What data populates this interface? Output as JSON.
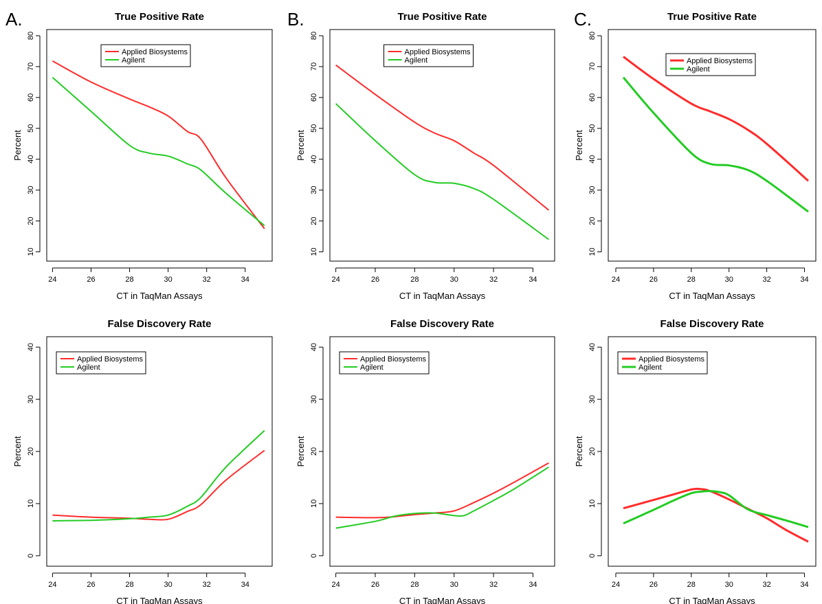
{
  "panel_letters": [
    "A.",
    "B.",
    "C."
  ],
  "colors": {
    "applied": "#ff2b2b",
    "agilent": "#22cc22"
  },
  "chart_data": [
    {
      "id": "A-top",
      "type": "line",
      "title": "True Positive Rate",
      "xlabel": "CT in TaqMan Assays",
      "ylabel": "Percent",
      "xlim": [
        23.7,
        35.4
      ],
      "ylim": [
        7,
        82
      ],
      "xticks": [
        "24",
        "26",
        "28",
        "30",
        "32",
        "34"
      ],
      "yticks": [
        "10",
        "20",
        "30",
        "40",
        "50",
        "60",
        "70",
        "80"
      ],
      "legend": "top-center",
      "series": [
        {
          "name": "Applied Biosystems",
          "color": "#ff2b2b",
          "x": [
            24,
            26,
            28,
            29,
            30,
            31,
            31.7,
            33,
            35
          ],
          "y": [
            71.8,
            65,
            59.5,
            57,
            54,
            49,
            46.5,
            34,
            17.5
          ]
        },
        {
          "name": "Agilent",
          "color": "#22cc22",
          "x": [
            24,
            26,
            28,
            29,
            30,
            31,
            31.7,
            33,
            35
          ],
          "y": [
            66.5,
            55.5,
            44.5,
            42,
            41,
            38.5,
            36.5,
            29,
            18.5
          ]
        }
      ]
    },
    {
      "id": "B-top",
      "type": "line",
      "title": "True Positive Rate",
      "xlabel": "CT in TaqMan Assays",
      "ylabel": "Percent",
      "xlim": [
        23.7,
        35.1
      ],
      "ylim": [
        7,
        82
      ],
      "xticks": [
        "24",
        "26",
        "28",
        "30",
        "32",
        "34"
      ],
      "yticks": [
        "10",
        "20",
        "30",
        "40",
        "50",
        "60",
        "70",
        "80"
      ],
      "legend": "top-center",
      "series": [
        {
          "name": "Applied Biosystems",
          "color": "#ff2b2b",
          "x": [
            24,
            26,
            28,
            29,
            30,
            31,
            32,
            34.8
          ],
          "y": [
            70.5,
            61,
            52,
            48.5,
            46,
            42,
            38,
            23.5
          ]
        },
        {
          "name": "Agilent",
          "color": "#22cc22",
          "x": [
            24,
            26,
            28,
            29,
            30,
            31,
            32,
            34.8
          ],
          "y": [
            58,
            46,
            35,
            32.5,
            32.2,
            30.5,
            27,
            14
          ]
        }
      ]
    },
    {
      "id": "C-top",
      "type": "line",
      "title": "True Positive Rate",
      "xlabel": "CT in TaqMan Assays",
      "ylabel": "Percent",
      "xlim": [
        23.6,
        34.6
      ],
      "ylim": [
        7,
        82
      ],
      "xticks": [
        "24",
        "26",
        "28",
        "30",
        "32",
        "34"
      ],
      "yticks": [
        "10",
        "20",
        "30",
        "40",
        "50",
        "60",
        "70",
        "80"
      ],
      "legend": "top-center",
      "series": [
        {
          "name": "Applied Biosystems",
          "color": "#ff2b2b",
          "x": [
            24.4,
            26,
            28,
            29,
            30,
            31,
            32,
            34.2
          ],
          "y": [
            73.2,
            66,
            58,
            55.5,
            53,
            49.5,
            45,
            33
          ]
        },
        {
          "name": "Agilent",
          "color": "#22cc22",
          "x": [
            24.4,
            26,
            28,
            29,
            30,
            31,
            32,
            34.2
          ],
          "y": [
            66.5,
            55,
            42,
            38.5,
            38,
            36.5,
            33,
            23
          ]
        }
      ]
    },
    {
      "id": "A-bottom",
      "type": "line",
      "title": "False Discovery Rate",
      "xlabel": "CT in TaqMan Assays",
      "ylabel": "Percent",
      "xlim": [
        23.7,
        35.4
      ],
      "ylim": [
        -2,
        42
      ],
      "xticks": [
        "24",
        "26",
        "28",
        "30",
        "32",
        "34"
      ],
      "yticks": [
        "0",
        "10",
        "20",
        "30",
        "40"
      ],
      "legend": "top-left",
      "series": [
        {
          "name": "Applied Biosystems",
          "color": "#ff2b2b",
          "x": [
            24,
            26,
            28,
            29,
            30,
            31,
            31.7,
            33,
            35
          ],
          "y": [
            7.8,
            7.4,
            7.2,
            7,
            7,
            8.5,
            9.8,
            14.5,
            20.2
          ]
        },
        {
          "name": "Agilent",
          "color": "#22cc22",
          "x": [
            24,
            26,
            28,
            29,
            30,
            31,
            31.7,
            33,
            35
          ],
          "y": [
            6.7,
            6.8,
            7.1,
            7.4,
            7.8,
            9.5,
            11.2,
            17,
            24
          ]
        }
      ]
    },
    {
      "id": "B-bottom",
      "type": "line",
      "title": "False Discovery Rate",
      "xlabel": "CT in TaqMan Assays",
      "ylabel": "Percent",
      "xlim": [
        23.7,
        35.1
      ],
      "ylim": [
        -2,
        42
      ],
      "xticks": [
        "24",
        "26",
        "28",
        "30",
        "32",
        "34"
      ],
      "yticks": [
        "0",
        "10",
        "20",
        "30",
        "40"
      ],
      "legend": "top-left",
      "series": [
        {
          "name": "Applied Biosystems",
          "color": "#ff2b2b",
          "x": [
            24,
            26,
            27,
            28,
            29,
            30,
            31,
            32,
            33,
            34.8
          ],
          "y": [
            7.4,
            7.3,
            7.5,
            7.9,
            8.2,
            8.6,
            10.2,
            12,
            14,
            17.8
          ]
        },
        {
          "name": "Agilent",
          "color": "#22cc22",
          "x": [
            24,
            26,
            27,
            28,
            29,
            30,
            30.5,
            31,
            32,
            33,
            34.8
          ],
          "y": [
            5.3,
            6.6,
            7.6,
            8.1,
            8.2,
            7.7,
            7.7,
            8.6,
            10.6,
            12.7,
            17
          ]
        }
      ]
    },
    {
      "id": "C-bottom",
      "type": "line",
      "title": "False Discovery Rate",
      "xlabel": "CT in TaqMan Assays",
      "ylabel": "Percent",
      "xlim": [
        23.6,
        34.6
      ],
      "ylim": [
        -2,
        42
      ],
      "xticks": [
        "24",
        "26",
        "28",
        "30",
        "32",
        "34"
      ],
      "yticks": [
        "0",
        "10",
        "20",
        "30",
        "40"
      ],
      "legend": "top-left",
      "series": [
        {
          "name": "Applied Biosystems",
          "color": "#ff2b2b",
          "x": [
            24.4,
            26,
            27,
            28,
            28.5,
            29,
            30,
            31,
            32,
            33,
            34.2
          ],
          "y": [
            9.1,
            10.7,
            11.7,
            12.7,
            12.8,
            12.4,
            10.8,
            9,
            7.2,
            5,
            2.7
          ]
        },
        {
          "name": "Agilent",
          "color": "#22cc22",
          "x": [
            24.4,
            26,
            27,
            28,
            28.5,
            29,
            29.5,
            30,
            31,
            32,
            33,
            34.2
          ],
          "y": [
            6.2,
            8.8,
            10.5,
            12,
            12.3,
            12.4,
            12.2,
            11.6,
            8.9,
            7.8,
            6.8,
            5.5
          ]
        }
      ]
    }
  ]
}
